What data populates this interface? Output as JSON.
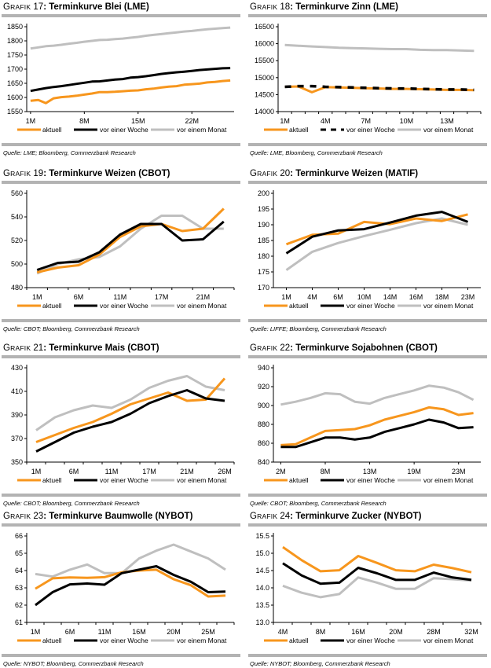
{
  "colors": {
    "aktuell": "#f7961d",
    "woche": "#000000",
    "monat": "#bfbfbf",
    "rule": "#b3b3b3"
  },
  "legend_labels": [
    "aktuell",
    "vor einer Woche",
    "vor einem Monat"
  ],
  "chart_data": [
    {
      "id": "g17",
      "type": "line",
      "prefix": "Grafik",
      "number": "17",
      "title": "Terminkurve Blei (LME)",
      "source": "Quelle: LME; Bloomberg, Commerzbank Research",
      "xlabel": "",
      "ylabel": "",
      "ylim": [
        1550,
        1850
      ],
      "yticks": [
        1550,
        1600,
        1650,
        1700,
        1750,
        1800,
        1850
      ],
      "x": [
        1,
        2,
        3,
        4,
        5,
        6,
        7,
        8,
        9,
        10,
        11,
        12,
        13,
        14,
        15,
        16,
        17,
        18,
        19,
        20,
        21,
        22,
        23,
        24,
        25,
        26,
        27
      ],
      "xticks": [
        1,
        8,
        15,
        22
      ],
      "xtick_labels": [
        "1M",
        "8M",
        "15M",
        "22M"
      ],
      "xlim": [
        0.5,
        27.5
      ],
      "x_minor_ticks": false,
      "series": [
        {
          "name": "aktuell",
          "key": "aktuell",
          "dashed": false,
          "values": [
            1588,
            1591,
            1580,
            1597,
            1601,
            1603,
            1606,
            1610,
            1614,
            1619,
            1619,
            1620,
            1622,
            1624,
            1625,
            1629,
            1631,
            1635,
            1638,
            1640,
            1645,
            1647,
            1649,
            1653,
            1655,
            1658,
            1660
          ]
        },
        {
          "name": "vor einer Woche",
          "key": "woche",
          "dashed": false,
          "values": [
            1623,
            1628,
            1633,
            1637,
            1640,
            1644,
            1648,
            1652,
            1656,
            1657,
            1660,
            1663,
            1665,
            1670,
            1672,
            1675,
            1679,
            1683,
            1686,
            1689,
            1691,
            1694,
            1697,
            1699,
            1701,
            1703,
            1704
          ]
        },
        {
          "name": "vor einem Monat",
          "key": "monat",
          "dashed": false,
          "values": [
            1773,
            1777,
            1781,
            1783,
            1786,
            1790,
            1793,
            1797,
            1800,
            1803,
            1804,
            1806,
            1808,
            1811,
            1814,
            1818,
            1821,
            1824,
            1827,
            1830,
            1833,
            1835,
            1838,
            1841,
            1843,
            1845,
            1847
          ]
        }
      ]
    },
    {
      "id": "g18",
      "type": "line",
      "prefix": "Grafik",
      "number": "18",
      "title": "Terminkurve Zinn (LME)",
      "source": "Quelle: LME, Bloomberg, Commerzbank Research",
      "xlabel": "",
      "ylabel": "",
      "ylim": [
        14000,
        16500
      ],
      "yticks": [
        14000,
        14500,
        15000,
        15500,
        16000,
        16500
      ],
      "x": [
        1,
        2,
        3,
        4,
        5,
        6,
        7,
        8,
        9,
        10,
        11,
        12,
        13,
        14,
        15
      ],
      "xticks": [
        1,
        4,
        7,
        10,
        13
      ],
      "xtick_labels": [
        "1M",
        "4M",
        "7M",
        "10M",
        "13M"
      ],
      "xlim": [
        0.5,
        15.5
      ],
      "x_minor_ticks": true,
      "series": [
        {
          "name": "aktuell",
          "key": "aktuell",
          "dashed": false,
          "values": [
            14730,
            14740,
            14570,
            14720,
            14710,
            14700,
            14690,
            14680,
            14670,
            14670,
            14660,
            14650,
            14640,
            14640,
            14630
          ]
        },
        {
          "name": "vor einer Woche",
          "key": "woche",
          "dashed": true,
          "values": [
            14730,
            14750,
            14750,
            14730,
            14720,
            14710,
            14700,
            14690,
            14680,
            14680,
            14670,
            14660,
            14650,
            14650,
            14640
          ]
        },
        {
          "name": "vor einem Monat",
          "key": "monat",
          "dashed": false,
          "values": [
            15960,
            15940,
            15920,
            15900,
            15880,
            15870,
            15860,
            15850,
            15840,
            15840,
            15820,
            15810,
            15810,
            15800,
            15790
          ]
        }
      ]
    },
    {
      "id": "g19",
      "type": "line",
      "prefix": "Grafik",
      "number": "19",
      "title": "Terminkurve Weizen (CBOT)",
      "source": "Quelle: CBOT; Bloomberg, Commerzbank Research",
      "xlabel": "",
      "ylabel": "",
      "ylim": [
        480,
        560
      ],
      "yticks": [
        480,
        500,
        520,
        540,
        560
      ],
      "x": [
        1,
        2,
        3,
        4,
        5,
        6,
        7,
        8,
        9,
        10
      ],
      "xticks": [
        1,
        3,
        5,
        7,
        9
      ],
      "xtick_labels": [
        "1M",
        "6M",
        "11M",
        "17M",
        "21M"
      ],
      "xlim": [
        0.5,
        10.5
      ],
      "x_minor_ticks": true,
      "series": [
        {
          "name": "aktuell",
          "key": "aktuell",
          "dashed": false,
          "values": [
            493,
            497,
            499,
            508,
            523,
            532,
            534,
            528,
            530,
            547
          ]
        },
        {
          "name": "vor einer Woche",
          "key": "woche",
          "dashed": false,
          "values": [
            495,
            501,
            502,
            510,
            525,
            534,
            534,
            520,
            521,
            536
          ]
        },
        {
          "name": "vor einem Monat",
          "key": "monat",
          "dashed": false,
          "values": [
            492,
            500,
            504,
            506,
            515,
            530,
            541,
            541,
            530,
            530
          ]
        }
      ]
    },
    {
      "id": "g20",
      "type": "line",
      "prefix": "Grafik",
      "number": "20",
      "title": "Terminkurve Weizen (MATIF)",
      "source": "Quelle: LIFFE; Bloomberg, Commerzbank Research",
      "xlabel": "",
      "ylabel": "",
      "ylim": [
        170,
        200
      ],
      "yticks": [
        170,
        175,
        180,
        185,
        190,
        195,
        200
      ],
      "x": [
        1,
        2,
        3,
        4,
        5,
        6,
        7,
        8
      ],
      "xticks": [
        1,
        2,
        3,
        4,
        5,
        6,
        7,
        8
      ],
      "xtick_labels": [
        "1M",
        "4M",
        "6M",
        "10M",
        "14M",
        "16M",
        "18M",
        "23M"
      ],
      "xlim": [
        0.5,
        8.5
      ],
      "x_minor_ticks": false,
      "series": [
        {
          "name": "aktuell",
          "key": "aktuell",
          "dashed": false,
          "values": [
            183.8,
            186.8,
            187.2,
            190.9,
            190.2,
            192.0,
            191.2,
            193.3
          ]
        },
        {
          "name": "vor einer Woche",
          "key": "woche",
          "dashed": false,
          "values": [
            180.9,
            186.2,
            188.2,
            188.6,
            190.7,
            192.9,
            194.1,
            190.9
          ]
        },
        {
          "name": "vor einem Monat",
          "key": "monat",
          "dashed": false,
          "values": [
            175.6,
            181.4,
            184.2,
            186.4,
            188.4,
            190.5,
            192.0,
            190.0
          ]
        }
      ]
    },
    {
      "id": "g21",
      "type": "line",
      "prefix": "Grafik",
      "number": "21",
      "title": "Terminkurve Mais (CBOT)",
      "source": "Quelle: CBOT; Bloomberg, Commerzbank Research",
      "xlabel": "",
      "ylabel": "",
      "ylim": [
        350,
        430
      ],
      "yticks": [
        350,
        370,
        390,
        410,
        430
      ],
      "x": [
        1,
        2,
        3,
        4,
        5,
        6,
        7,
        8,
        9,
        10,
        11
      ],
      "xticks": [
        1,
        3,
        5,
        7,
        9,
        11
      ],
      "xtick_labels": [
        "1M",
        "6M",
        "11M",
        "17M",
        "21M",
        "26M"
      ],
      "xlim": [
        0.5,
        11.5
      ],
      "x_minor_ticks": true,
      "series": [
        {
          "name": "aktuell",
          "key": "aktuell",
          "dashed": false,
          "values": [
            367,
            373,
            379,
            384,
            391,
            399,
            404,
            409,
            402,
            403,
            421
          ]
        },
        {
          "name": "vor einer Woche",
          "key": "woche",
          "dashed": false,
          "values": [
            359,
            367,
            375,
            380,
            384,
            391,
            400,
            406,
            411,
            404,
            402
          ]
        },
        {
          "name": "vor einem Monat",
          "key": "monat",
          "dashed": false,
          "values": [
            377,
            388,
            394,
            398,
            396,
            403,
            413,
            419,
            423,
            414,
            411
          ]
        }
      ]
    },
    {
      "id": "g22",
      "type": "line",
      "prefix": "Grafik",
      "number": "22",
      "title": "Terminkurve Sojabohnen (CBOT)",
      "source": "Quelle: CBOT; Bloomberg, Commerzbank Research",
      "xlabel": "",
      "ylabel": "",
      "ylim": [
        840,
        940
      ],
      "yticks": [
        840,
        860,
        880,
        900,
        920,
        940
      ],
      "x": [
        1,
        2,
        3,
        4,
        5,
        6,
        7,
        8,
        9,
        10,
        11,
        12,
        13,
        14
      ],
      "xticks": [
        1,
        4,
        7,
        10,
        13
      ],
      "xtick_labels": [
        "2M",
        "8M",
        "13M",
        "19M",
        "23M"
      ],
      "xlim": [
        0.5,
        14.5
      ],
      "x_minor_ticks": false,
      "series": [
        {
          "name": "aktuell",
          "key": "aktuell",
          "dashed": false,
          "values": [
            858,
            859,
            866,
            873,
            874,
            875,
            879,
            885,
            889,
            893,
            898,
            896,
            890,
            892
          ]
        },
        {
          "name": "vor einer Woche",
          "key": "woche",
          "dashed": false,
          "values": [
            856,
            856,
            861,
            866,
            866,
            864,
            866,
            872,
            876,
            880,
            885,
            882,
            876,
            877
          ]
        },
        {
          "name": "vor einem Monat",
          "key": "monat",
          "dashed": false,
          "values": [
            901,
            904,
            908,
            913,
            912,
            904,
            902,
            908,
            912,
            916,
            921,
            919,
            914,
            906
          ]
        }
      ]
    },
    {
      "id": "g23",
      "type": "line",
      "prefix": "Grafik",
      "number": "23",
      "title": "Terminkurve Baumwolle (NYBOT)",
      "source": "Quelle: NYBOT; Bloomberg, Commerzbank Research",
      "xlabel": "",
      "ylabel": "",
      "ylim": [
        61,
        66
      ],
      "yticks": [
        61,
        62,
        63,
        64,
        65,
        66
      ],
      "x": [
        1,
        2,
        3,
        4,
        5,
        6,
        7,
        8,
        9,
        10,
        11,
        12
      ],
      "xticks": [
        1,
        3,
        5,
        7,
        9,
        11
      ],
      "xtick_labels": [
        "1M",
        "6M",
        "11M",
        "16M",
        "20M",
        "25M"
      ],
      "xlim": [
        0.5,
        12.5
      ],
      "x_minor_ticks": true,
      "series": [
        {
          "name": "aktuell",
          "key": "aktuell",
          "dashed": false,
          "values": [
            62.95,
            63.55,
            63.6,
            63.58,
            63.62,
            63.9,
            64.0,
            64.05,
            63.5,
            63.15,
            62.5,
            62.55
          ]
        },
        {
          "name": "vor einer Woche",
          "key": "woche",
          "dashed": false,
          "values": [
            62.0,
            62.75,
            63.2,
            63.25,
            63.18,
            63.85,
            64.05,
            64.25,
            63.75,
            63.35,
            62.75,
            62.78
          ]
        },
        {
          "name": "vor einem Monat",
          "key": "monat",
          "dashed": false,
          "values": [
            63.8,
            63.65,
            64.05,
            64.35,
            63.85,
            63.85,
            64.7,
            65.15,
            65.5,
            65.1,
            64.7,
            64.05
          ]
        }
      ]
    },
    {
      "id": "g24",
      "type": "line",
      "prefix": "Grafik",
      "number": "24",
      "title": "Terminkurve Zucker (NYBOT)",
      "source": "Quelle: NYBOT; Bloomberg, Commerzbank Research",
      "xlabel": "",
      "ylabel": "",
      "ylim": [
        13.0,
        15.5
      ],
      "yticks": [
        13.0,
        13.5,
        14.0,
        14.5,
        15.0,
        15.5
      ],
      "ytick_decimals": 1,
      "x": [
        1,
        2,
        3,
        4,
        5,
        6,
        7,
        8,
        9,
        10,
        11
      ],
      "xticks": [
        1,
        3,
        5,
        7,
        9,
        11
      ],
      "xtick_labels": [
        "4M",
        "8M",
        "16M",
        "20M",
        "28M",
        "32M"
      ],
      "xlim": [
        0.5,
        11.5
      ],
      "x_minor_ticks": true,
      "series": [
        {
          "name": "aktuell",
          "key": "aktuell",
          "dashed": false,
          "values": [
            15.18,
            14.8,
            14.48,
            14.51,
            14.92,
            14.72,
            14.51,
            14.48,
            14.67,
            14.57,
            14.45
          ]
        },
        {
          "name": "vor einer Woche",
          "key": "woche",
          "dashed": false,
          "values": [
            14.71,
            14.36,
            14.12,
            14.15,
            14.58,
            14.42,
            14.23,
            14.23,
            14.44,
            14.3,
            14.23
          ]
        },
        {
          "name": "vor einem Monat",
          "key": "monat",
          "dashed": false,
          "values": [
            14.06,
            13.86,
            13.73,
            13.82,
            14.3,
            14.15,
            13.97,
            13.97,
            14.28,
            14.25,
            14.21
          ]
        }
      ]
    }
  ]
}
